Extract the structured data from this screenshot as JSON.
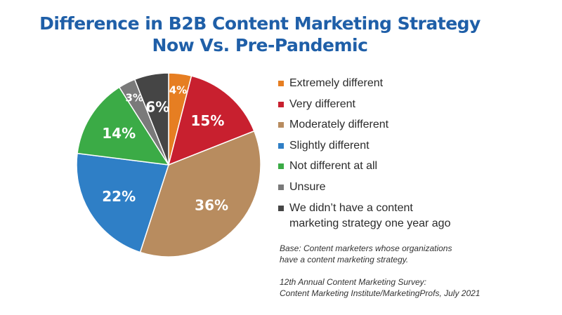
{
  "title": {
    "line1": "Difference in B2B Content Marketing Strategy",
    "line2": "Now Vs. Pre-Pandemic"
  },
  "chart_data": {
    "type": "pie",
    "title": "Difference in B2B Content Marketing Strategy Now Vs. Pre-Pandemic",
    "slices": [
      {
        "label": "Extremely different",
        "value": 4,
        "color": "#e67e22"
      },
      {
        "label": "Very different",
        "value": 15,
        "color": "#c8202f"
      },
      {
        "label": "Moderately different",
        "value": 36,
        "color": "#b88c5f"
      },
      {
        "label": "Slightly different",
        "value": 22,
        "color": "#2f7fc6"
      },
      {
        "label": "Not different at all",
        "value": 14,
        "color": "#3bab46"
      },
      {
        "label": "Unsure",
        "value": 3,
        "color": "#7a7a7a"
      },
      {
        "label": "We didn’t have a content marketing strategy one year ago",
        "value": 6,
        "color": "#454545"
      }
    ],
    "value_suffix": "%",
    "legend_position": "right"
  },
  "legend": [
    {
      "lines": [
        "Extremely different"
      ],
      "color": "#e67e22"
    },
    {
      "lines": [
        "Very different"
      ],
      "color": "#c8202f"
    },
    {
      "lines": [
        "Moderately different"
      ],
      "color": "#b88c5f"
    },
    {
      "lines": [
        "Slightly different"
      ],
      "color": "#2f7fc6"
    },
    {
      "lines": [
        "Not different at all"
      ],
      "color": "#3bab46"
    },
    {
      "lines": [
        "Unsure"
      ],
      "color": "#7a7a7a"
    },
    {
      "lines": [
        "We didn’t have a content",
        "marketing strategy one year ago"
      ],
      "color": "#454545"
    }
  ],
  "notes": {
    "base": [
      "Base: Content marketers whose organizations",
      "have a content marketing strategy."
    ],
    "source": [
      "12th Annual Content Marketing Survey:",
      "Content Marketing Institute/MarketingProfs, July 2021"
    ]
  }
}
